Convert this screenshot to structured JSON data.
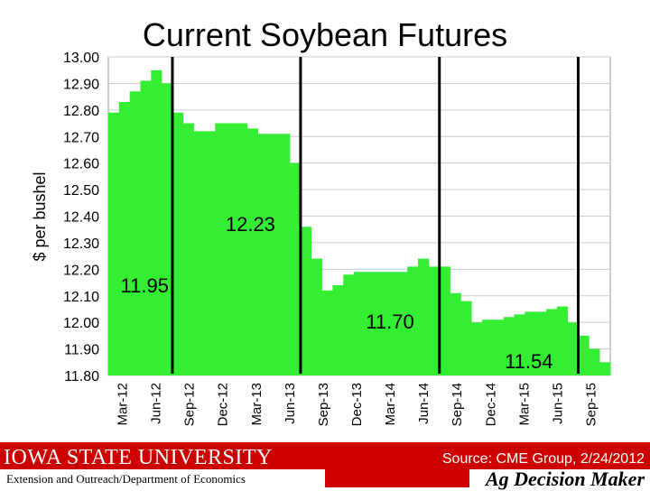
{
  "chart_data": {
    "type": "bar",
    "title": "Current Soybean Futures",
    "ylabel": "$ per bushel",
    "ylim": [
      11.8,
      13.0
    ],
    "yticks": [
      "13.00",
      "12.90",
      "12.80",
      "12.70",
      "12.60",
      "12.50",
      "12.40",
      "12.30",
      "12.20",
      "12.10",
      "12.00",
      "11.90",
      "11.80"
    ],
    "xtick_labels": [
      "Mar-12",
      "Jun-12",
      "Sep-12",
      "Dec-12",
      "Mar-13",
      "Jun-13",
      "Sep-13",
      "Dec-13",
      "Mar-14",
      "Jun-14",
      "Sep-14",
      "Dec-14",
      "Mar-15",
      "Jun-15",
      "Sep-15"
    ],
    "values": [
      12.79,
      12.83,
      12.87,
      12.91,
      12.95,
      12.9,
      12.79,
      12.75,
      12.72,
      12.72,
      12.75,
      12.75,
      12.75,
      12.73,
      12.71,
      12.71,
      12.71,
      12.6,
      12.36,
      12.24,
      12.12,
      12.14,
      12.18,
      12.19,
      12.19,
      12.19,
      12.19,
      12.19,
      12.21,
      12.24,
      12.21,
      12.21,
      12.11,
      12.08,
      12.0,
      12.01,
      12.01,
      12.02,
      12.03,
      12.04,
      12.04,
      12.05,
      12.06,
      12.0,
      11.95,
      11.9,
      11.85
    ],
    "bar_color": "#33ee33",
    "grid": true,
    "annotations": [
      "12.23",
      "11.95",
      "11.70",
      "11.54"
    ],
    "marker_after_bar": [
      5,
      17,
      30,
      43
    ]
  },
  "footer": {
    "university": "Iowa State University",
    "department": "Extension and Outreach/Department of Economics",
    "source": "Source: CME Group, 2/24/2012",
    "brand": "Ag Decision Maker"
  },
  "colors": {
    "footer_red": "#cc0000",
    "bar_green": "#33ee33"
  }
}
